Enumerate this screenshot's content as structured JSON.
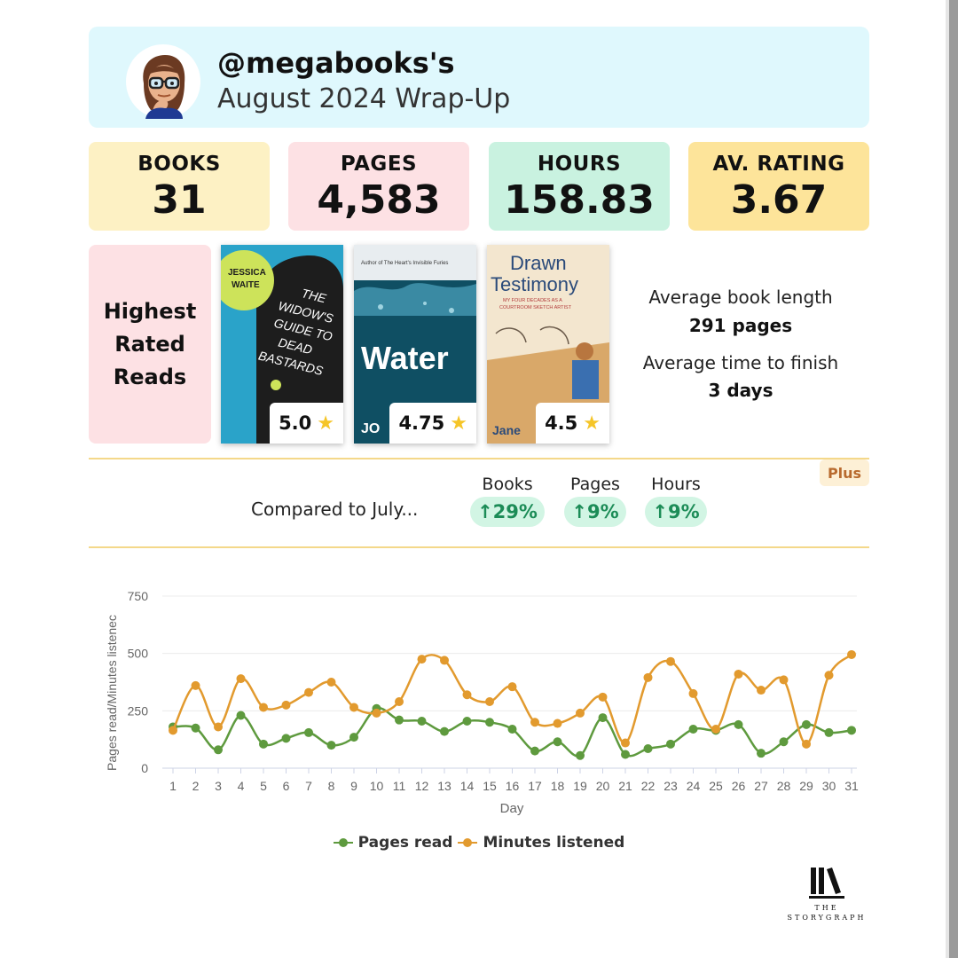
{
  "header": {
    "handle": "@megabooks's",
    "subtitle": "August 2024 Wrap-Up"
  },
  "stats": [
    {
      "label": "BOOKS",
      "value": "31",
      "color": "#fdf1c4"
    },
    {
      "label": "PAGES",
      "value": "4,583",
      "color": "#fde1e4"
    },
    {
      "label": "HOURS",
      "value": "158.83",
      "color": "#c9f2e0"
    },
    {
      "label": "AV. RATING",
      "value": "3.67",
      "color": "#fde49a"
    }
  ],
  "highest_rated": {
    "label": "Highest\nRated\nReads",
    "books": [
      {
        "cover_author": "JESSICA WAITE",
        "cover_title": "THE WIDOW'S GUIDE TO DEAD BASTARDS",
        "rating": "5.0"
      },
      {
        "cover_top": "Author of The Heart's Invisible Furies",
        "cover_title": "Water",
        "cover_author": "JO",
        "rating": "4.75"
      },
      {
        "cover_title_1": "Drawn",
        "cover_title_2": "Testimony",
        "cover_sub": "MY FOUR DECADES AS A COURTROOM SKETCH ARTIST",
        "cover_author": "Jane",
        "rating": "4.5"
      }
    ]
  },
  "averages": {
    "length_label": "Average book length",
    "length_value": "291 pages",
    "finish_label": "Average time to finish",
    "finish_value": "3 days"
  },
  "comparison": {
    "label": "Compared to July...",
    "badge": "Plus",
    "items": [
      {
        "label": "Books",
        "value": "29%"
      },
      {
        "label": "Pages",
        "value": "9%"
      },
      {
        "label": "Hours",
        "value": "9%"
      }
    ]
  },
  "chart_data": {
    "type": "line",
    "xlabel": "Day",
    "ylabel": "Pages read/Minutes listenec",
    "ylim": [
      0,
      750
    ],
    "yticks": [
      0,
      250,
      500,
      750
    ],
    "x": [
      1,
      2,
      3,
      4,
      5,
      6,
      7,
      8,
      9,
      10,
      11,
      12,
      13,
      14,
      15,
      16,
      17,
      18,
      19,
      20,
      21,
      22,
      23,
      24,
      25,
      26,
      27,
      28,
      29,
      30,
      31
    ],
    "grid": true,
    "legend_position": "bottom",
    "series": [
      {
        "name": "Pages read",
        "color": "#5e9a3e",
        "values": [
          180,
          175,
          80,
          230,
          105,
          130,
          155,
          100,
          135,
          260,
          210,
          205,
          160,
          205,
          200,
          170,
          75,
          115,
          55,
          220,
          60,
          85,
          105,
          170,
          165,
          190,
          65,
          115,
          190,
          155,
          165
        ]
      },
      {
        "name": "Minutes listened",
        "color": "#e29a2e",
        "values": [
          165,
          360,
          180,
          390,
          265,
          275,
          330,
          375,
          265,
          240,
          290,
          475,
          470,
          320,
          290,
          355,
          200,
          195,
          240,
          310,
          110,
          395,
          465,
          325,
          170,
          410,
          340,
          385,
          105,
          405,
          495
        ]
      }
    ]
  },
  "brand": {
    "name": "THE STORYGRAPH"
  }
}
